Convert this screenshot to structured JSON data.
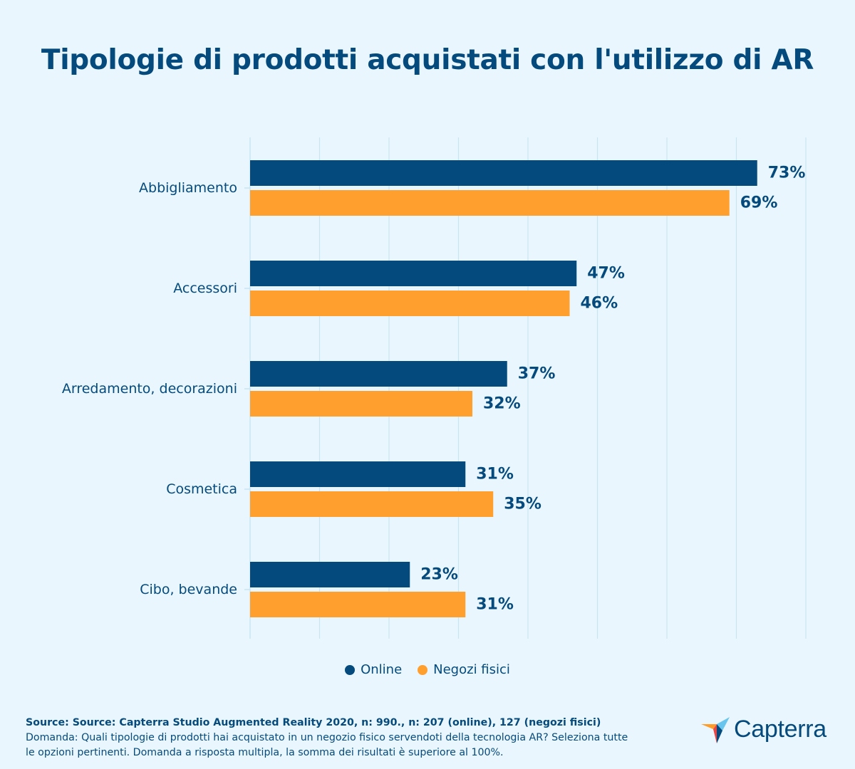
{
  "title": "Tipologie di prodotti acquistati con l'utilizzo di AR",
  "colors": {
    "background": "#eaf6fd",
    "online": "#044a7c",
    "stores": "#ffa02e",
    "grid": "#c8e5f3",
    "text": "#044a7c"
  },
  "chart_data": {
    "type": "bar",
    "orientation": "horizontal",
    "title": "Tipologie di prodotti acquistati con l'utilizzo di AR",
    "categories": [
      "Abbigliamento",
      "Accessori",
      "Arredamento, decorazioni",
      "Cosmetica",
      "Cibo, bevande"
    ],
    "series": [
      {
        "name": "Online",
        "values": [
          73,
          47,
          37,
          31,
          23
        ],
        "labels": [
          "73%",
          "47%",
          "37%",
          "31%",
          "23%"
        ]
      },
      {
        "name": "Negozi fisici",
        "values": [
          69,
          46,
          32,
          35,
          31
        ],
        "labels": [
          "69%",
          "46%",
          "32%",
          "35%",
          "31%"
        ]
      }
    ],
    "xlim": [
      0,
      80
    ],
    "grid": true,
    "legend": "bottom-center"
  },
  "legend": {
    "online": "Online",
    "stores": "Negozi fisici"
  },
  "footer": {
    "source": "Source: Source: Capterra Studio Augmented Reality 2020, n: 990., n: 207 (online), 127 (negozi fisici)",
    "question": "Domanda: Quali tipologie di prodotti hai acquistato in un negozio fisico servendoti della tecnologia AR? Seleziona tutte le opzioni pertinenti. Domanda a risposta multipla, la somma dei risultati è superiore al 100%."
  },
  "logo": {
    "text": "Capterra"
  }
}
